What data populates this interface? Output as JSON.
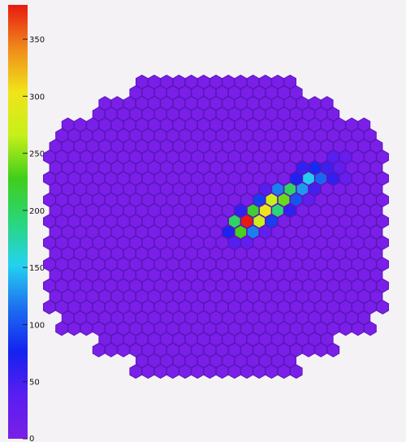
{
  "chart_data": {
    "type": "heatmap",
    "title": "",
    "xlabel": "",
    "ylabel": "",
    "colorbar": {
      "min": 0,
      "max": 380,
      "ticks": [
        0,
        50,
        100,
        150,
        200,
        250,
        300,
        350
      ],
      "tick_labels": [
        "0",
        "50",
        "100",
        "150",
        "200",
        "250",
        "300",
        "350"
      ],
      "colormap": "rainbow",
      "colors": [
        "#7a1fe8",
        "#5a1ef0",
        "#1422f0",
        "#1c6ef0",
        "#24d2f0",
        "#2ad67a",
        "#3fcf1a",
        "#c6f01a",
        "#f0e41a",
        "#f08a1a",
        "#e81a10"
      ]
    },
    "camera": {
      "pixel_shape": "hexagon",
      "background_value": 0,
      "outline_color": "#5a16b8"
    },
    "hot_pixels": [
      {
        "row": 7,
        "col": 23.5,
        "value": 40
      },
      {
        "row": 7,
        "col": 24.5,
        "value": 25
      },
      {
        "row": 8,
        "col": 21,
        "value": 60
      },
      {
        "row": 8,
        "col": 22,
        "value": 80
      },
      {
        "row": 8,
        "col": 23,
        "value": 55
      },
      {
        "row": 8,
        "col": 24,
        "value": 30
      },
      {
        "row": 9,
        "col": 20.5,
        "value": 70
      },
      {
        "row": 9,
        "col": 21.5,
        "value": 150
      },
      {
        "row": 9,
        "col": 22.5,
        "value": 110
      },
      {
        "row": 9,
        "col": 23.5,
        "value": 60
      },
      {
        "row": 9,
        "col": 24.5,
        "value": 25
      },
      {
        "row": 10,
        "col": 18,
        "value": 40
      },
      {
        "row": 10,
        "col": 19,
        "value": 120
      },
      {
        "row": 10,
        "col": 20,
        "value": 200
      },
      {
        "row": 10,
        "col": 21,
        "value": 130
      },
      {
        "row": 10,
        "col": 22,
        "value": 50
      },
      {
        "row": 11,
        "col": 17.5,
        "value": 90
      },
      {
        "row": 11,
        "col": 18.5,
        "value": 270
      },
      {
        "row": 11,
        "col": 19.5,
        "value": 240
      },
      {
        "row": 11,
        "col": 20.5,
        "value": 100
      },
      {
        "row": 11,
        "col": 21.5,
        "value": 30
      },
      {
        "row": 12,
        "col": 16,
        "value": 60
      },
      {
        "row": 12,
        "col": 17,
        "value": 220
      },
      {
        "row": 12,
        "col": 18,
        "value": 300
      },
      {
        "row": 12,
        "col": 19,
        "value": 190
      },
      {
        "row": 12,
        "col": 20,
        "value": 60
      },
      {
        "row": 13,
        "col": 15.5,
        "value": 200
      },
      {
        "row": 13,
        "col": 16.5,
        "value": 380
      },
      {
        "row": 13,
        "col": 17.5,
        "value": 270
      },
      {
        "row": 13,
        "col": 18.5,
        "value": 90
      },
      {
        "row": 14,
        "col": 15,
        "value": 70
      },
      {
        "row": 14,
        "col": 16,
        "value": 230
      },
      {
        "row": 14,
        "col": 17,
        "value": 120
      },
      {
        "row": 14,
        "col": 18,
        "value": 30
      },
      {
        "row": 15,
        "col": 15.5,
        "value": 40
      },
      {
        "row": 15,
        "col": 16.5,
        "value": 30
      }
    ]
  }
}
